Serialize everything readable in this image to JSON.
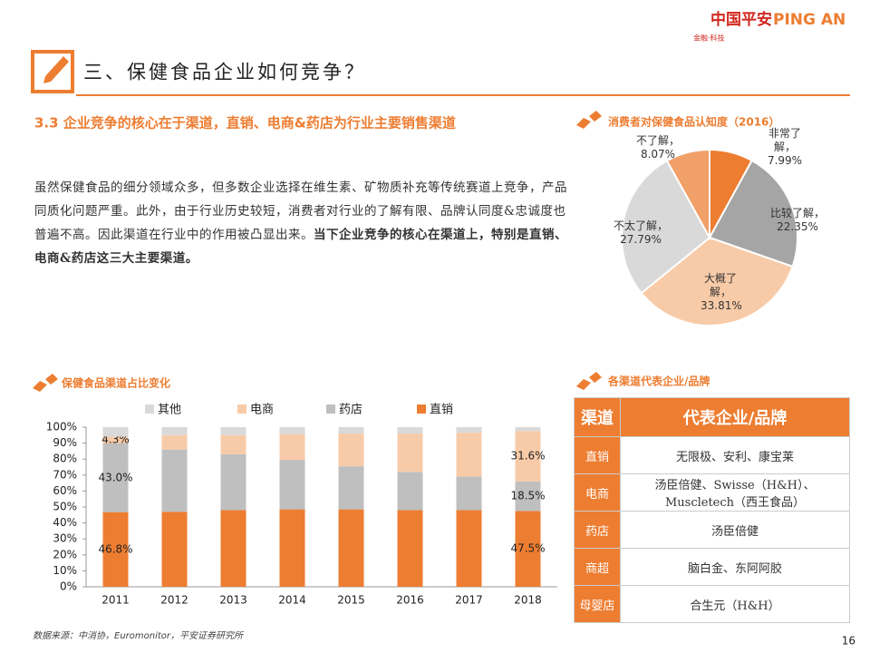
{
  "header": {
    "logo_cn": "中国平安",
    "logo_en": "PING AN",
    "logo_sub": "金融·科技",
    "section_title": "三、保健食品企业如何竞争？"
  },
  "subtitle": "3.3 企业竞争的核心在于渠道，直销、电商&药店为行业主要销售渠道",
  "paragraph": {
    "text": "虽然保健食品的细分领域众多，但多数企业选择在维生素、矿物质补充等传统赛道上竞争，产品同质化问题严重。此外，由于行业历史较短，消费者对行业的了解有限、品牌认同度&忠诚度也普遍不高。因此渠道在行业中的作用被凸显出来。",
    "bold": "当下企业竞争的核心在渠道上，特别是直销、电商&药店这三大主要渠道。"
  },
  "chart_data": [
    {
      "type": "pie",
      "title": "消费者对保健食品认知度（2016）",
      "categories": [
        "非常了解，",
        "比较了解，",
        "大概了解，",
        "不太了解，",
        "不了解，"
      ],
      "values": [
        7.99,
        22.35,
        33.81,
        27.79,
        8.07
      ],
      "value_labels": [
        "7.99%",
        "22.35%",
        "33.81%",
        "27.79%",
        "8.07%"
      ],
      "colors": [
        "#ed7d31",
        "#a5a5a5",
        "#f8cba8",
        "#d9d9d9",
        "#f1a06a"
      ]
    },
    {
      "type": "stacked_bar",
      "title": "保健食品渠道占比变化",
      "categories": [
        "2011",
        "2012",
        "2013",
        "2014",
        "2015",
        "2016",
        "2017",
        "2018"
      ],
      "series": [
        {
          "name": "其他",
          "color": "#d9d9d9",
          "values": [
            5.9,
            5,
            5,
            4.5,
            4,
            4,
            3.5,
            2.4
          ]
        },
        {
          "name": "电商",
          "color": "#f8cba8",
          "values": [
            4.3,
            9,
            12,
            16,
            20.5,
            24,
            27.5,
            31.6
          ],
          "value_labels": [
            "4.3%",
            null,
            null,
            null,
            null,
            null,
            null,
            "31.6%"
          ]
        },
        {
          "name": "药店",
          "color": "#bfbfbf",
          "values": [
            43.0,
            39,
            35,
            31,
            27,
            24,
            21,
            18.5
          ],
          "value_labels": [
            "43.0%",
            null,
            null,
            null,
            null,
            null,
            null,
            "18.5%"
          ]
        },
        {
          "name": "直销",
          "color": "#ed7d31",
          "values": [
            46.8,
            47,
            48,
            48.5,
            48.5,
            48,
            48,
            47.5
          ],
          "value_labels": [
            "46.8%",
            null,
            null,
            null,
            null,
            null,
            null,
            "47.5%"
          ]
        }
      ],
      "ylim": [
        0,
        100
      ],
      "yticks": [
        {
          "value": 0,
          "label": "0%"
        },
        {
          "value": 10,
          "label": "10%"
        },
        {
          "value": 20,
          "label": "20%"
        },
        {
          "value": 30,
          "label": "30%"
        },
        {
          "value": 40,
          "label": "40%"
        },
        {
          "value": 50,
          "label": "50%"
        },
        {
          "value": 60,
          "label": "60%"
        },
        {
          "value": 70,
          "label": "70%"
        },
        {
          "value": 80,
          "label": "80%"
        },
        {
          "value": 90,
          "label": "90%"
        },
        {
          "value": 100,
          "label": "100%"
        }
      ],
      "grid": false
    }
  ],
  "table": {
    "title": "各渠道代表企业/品牌",
    "header": [
      "渠道",
      "代表企业/品牌"
    ],
    "rows": [
      [
        "直销",
        "无限极、安利、康宝莱"
      ],
      [
        "电商",
        "汤臣倍健、Swisse（H&H）、Muscletech（西王食品）"
      ],
      [
        "药店",
        "汤臣倍健"
      ],
      [
        "商超",
        "脑白金、东阿阿胶"
      ],
      [
        "母婴店",
        "合生元（H&H）"
      ]
    ]
  },
  "footer": {
    "source": "数据来源：中消协，Euromonitor，平安证券研究所",
    "page": 16
  }
}
